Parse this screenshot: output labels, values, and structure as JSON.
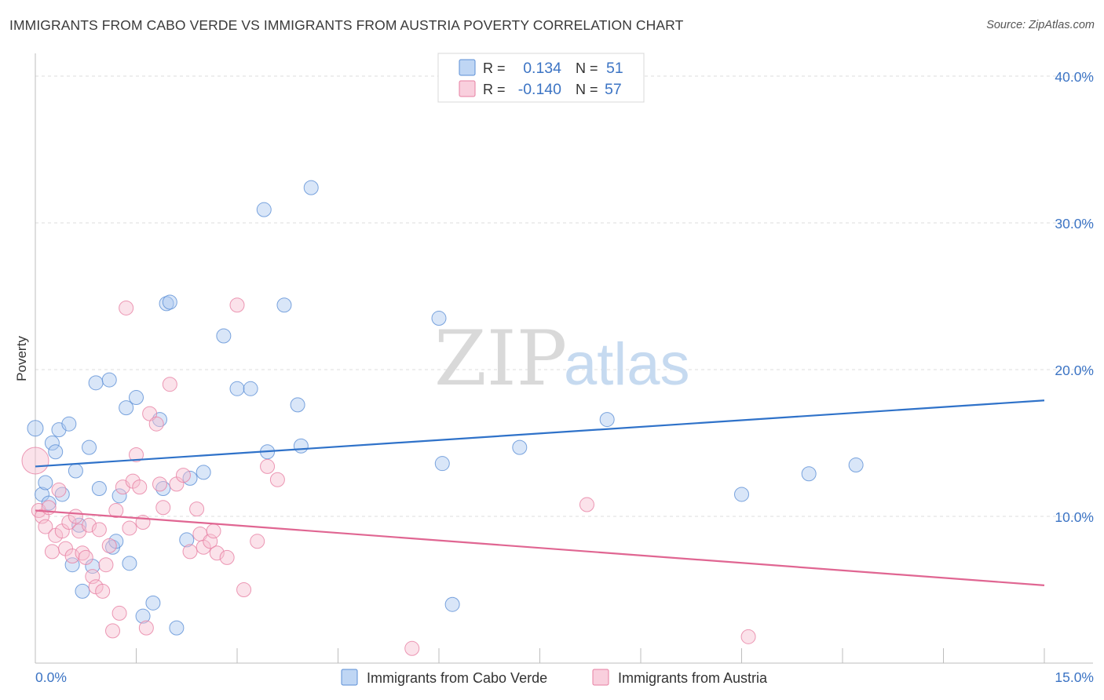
{
  "header": {
    "title": "IMMIGRANTS FROM CABO VERDE VS IMMIGRANTS FROM AUSTRIA POVERTY CORRELATION CHART",
    "source": "Source: ZipAtlas.com"
  },
  "watermark": {
    "zip": "ZIP",
    "atlas": "atlas"
  },
  "legend": {
    "rows": [
      {
        "r_label": "R =",
        "r_value": "0.134",
        "n_label": "N =",
        "n_value": "51",
        "color": "#5b8fd6",
        "fill": "#aac8f0"
      },
      {
        "r_label": "R =",
        "r_value": "-0.140",
        "n_label": "N =",
        "n_value": "57",
        "color": "#e77fa2",
        "fill": "#f7bfd1"
      }
    ]
  },
  "chart_data": {
    "type": "scatter",
    "ylabel": "Poverty",
    "xlabel": "",
    "xlim": [
      0,
      15
    ],
    "ylim": [
      0,
      40
    ],
    "x_tick_labels": [
      "0.0%",
      "15.0%"
    ],
    "y_ticks": [
      10,
      20,
      30,
      40
    ],
    "y_tick_labels": [
      "10.0%",
      "20.0%",
      "30.0%",
      "40.0%"
    ],
    "grid": true,
    "legend_position": "bottom",
    "series": [
      {
        "name": "Immigrants from Cabo Verde",
        "color": "#5b8fd6",
        "fill": "#aac8f0",
        "trend": {
          "x": [
            0,
            15
          ],
          "y": [
            13.4,
            17.9
          ]
        },
        "points": [
          [
            0.0,
            16.0
          ],
          [
            0.1,
            11.5
          ],
          [
            0.15,
            12.3
          ],
          [
            0.2,
            10.9
          ],
          [
            0.25,
            15.0
          ],
          [
            0.3,
            14.4
          ],
          [
            0.35,
            15.9
          ],
          [
            0.4,
            11.5
          ],
          [
            0.5,
            16.3
          ],
          [
            0.55,
            6.7
          ],
          [
            0.6,
            13.1
          ],
          [
            0.65,
            9.4
          ],
          [
            0.7,
            4.9
          ],
          [
            0.8,
            14.7
          ],
          [
            0.85,
            6.6
          ],
          [
            0.9,
            19.1
          ],
          [
            0.95,
            11.9
          ],
          [
            1.1,
            19.3
          ],
          [
            1.15,
            7.9
          ],
          [
            1.2,
            8.3
          ],
          [
            1.25,
            11.4
          ],
          [
            1.35,
            17.4
          ],
          [
            1.4,
            6.8
          ],
          [
            1.5,
            18.1
          ],
          [
            1.6,
            3.2
          ],
          [
            1.75,
            4.1
          ],
          [
            1.85,
            16.6
          ],
          [
            1.9,
            11.9
          ],
          [
            1.95,
            24.5
          ],
          [
            2.0,
            24.6
          ],
          [
            2.1,
            2.4
          ],
          [
            2.25,
            8.4
          ],
          [
            2.3,
            12.6
          ],
          [
            2.5,
            13.0
          ],
          [
            2.8,
            22.3
          ],
          [
            3.0,
            18.7
          ],
          [
            3.2,
            18.7
          ],
          [
            3.4,
            30.9
          ],
          [
            3.45,
            14.4
          ],
          [
            3.7,
            24.4
          ],
          [
            3.9,
            17.6
          ],
          [
            3.95,
            14.8
          ],
          [
            4.1,
            32.4
          ],
          [
            6.0,
            23.5
          ],
          [
            6.05,
            13.6
          ],
          [
            6.2,
            4.0
          ],
          [
            7.2,
            14.7
          ],
          [
            8.5,
            16.6
          ],
          [
            10.5,
            11.5
          ],
          [
            11.5,
            12.9
          ],
          [
            12.2,
            13.5
          ]
        ]
      },
      {
        "name": "Immigrants from Austria",
        "color": "#e77fa2",
        "fill": "#f7bfd1",
        "trend": {
          "x": [
            0,
            15
          ],
          "y": [
            10.4,
            5.3
          ]
        },
        "points": [
          [
            0.0,
            13.8
          ],
          [
            0.05,
            10.4
          ],
          [
            0.1,
            10.0
          ],
          [
            0.15,
            9.3
          ],
          [
            0.2,
            10.6
          ],
          [
            0.25,
            7.6
          ],
          [
            0.3,
            8.7
          ],
          [
            0.35,
            11.8
          ],
          [
            0.4,
            9.0
          ],
          [
            0.45,
            7.8
          ],
          [
            0.5,
            9.6
          ],
          [
            0.55,
            7.3
          ],
          [
            0.6,
            10.0
          ],
          [
            0.65,
            9.0
          ],
          [
            0.7,
            7.5
          ],
          [
            0.75,
            7.2
          ],
          [
            0.8,
            9.4
          ],
          [
            0.85,
            5.9
          ],
          [
            0.9,
            5.2
          ],
          [
            0.95,
            9.1
          ],
          [
            1.0,
            4.9
          ],
          [
            1.05,
            6.7
          ],
          [
            1.1,
            8.0
          ],
          [
            1.15,
            2.2
          ],
          [
            1.2,
            10.4
          ],
          [
            1.25,
            3.4
          ],
          [
            1.3,
            12.0
          ],
          [
            1.35,
            24.2
          ],
          [
            1.4,
            9.2
          ],
          [
            1.45,
            12.4
          ],
          [
            1.5,
            14.2
          ],
          [
            1.55,
            12.0
          ],
          [
            1.6,
            9.6
          ],
          [
            1.65,
            2.4
          ],
          [
            1.7,
            17.0
          ],
          [
            1.8,
            16.3
          ],
          [
            1.85,
            12.2
          ],
          [
            1.9,
            10.6
          ],
          [
            2.0,
            19.0
          ],
          [
            2.1,
            12.2
          ],
          [
            2.2,
            12.8
          ],
          [
            2.3,
            7.6
          ],
          [
            2.4,
            10.5
          ],
          [
            2.45,
            8.8
          ],
          [
            2.5,
            7.9
          ],
          [
            2.6,
            8.3
          ],
          [
            2.65,
            9.0
          ],
          [
            2.7,
            7.5
          ],
          [
            2.85,
            7.2
          ],
          [
            3.0,
            24.4
          ],
          [
            3.1,
            5.0
          ],
          [
            3.3,
            8.3
          ],
          [
            3.45,
            13.4
          ],
          [
            3.6,
            12.5
          ],
          [
            5.6,
            1.0
          ],
          [
            8.2,
            10.8
          ],
          [
            10.6,
            1.8
          ]
        ]
      }
    ]
  }
}
